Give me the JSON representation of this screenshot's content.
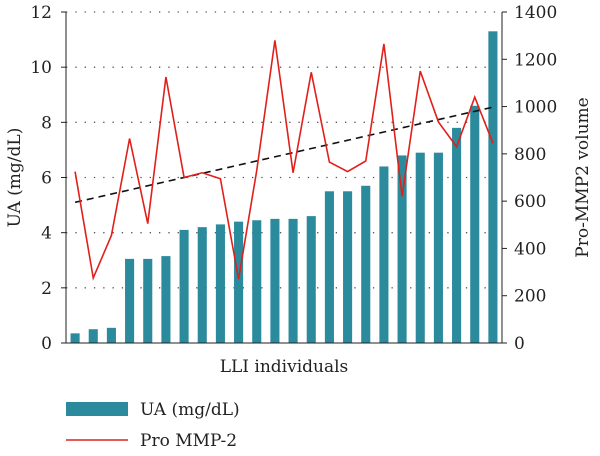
{
  "chart_data": {
    "type": "bar",
    "xlabel": "LLI individuals",
    "ylabel_left": "UA (mg/dL)",
    "ylabel_right": "Pro-MMP2 volume",
    "ylim_left": [
      0,
      12
    ],
    "ylim_right": [
      0,
      1400
    ],
    "yticks_left": [
      "0",
      "2",
      "4",
      "6",
      "8",
      "10",
      "12"
    ],
    "yticks_right": [
      "0",
      "200",
      "400",
      "600",
      "800",
      "1000",
      "1200",
      "1400"
    ],
    "grid": "horizontal dotted",
    "legend_position": "bottom-left",
    "series": [
      {
        "name": "UA (mg/dL)",
        "type": "bar",
        "axis": "left",
        "color": "#2b8a9c",
        "values": [
          0.35,
          0.5,
          0.55,
          3.05,
          3.05,
          3.15,
          4.1,
          4.2,
          4.3,
          4.4,
          4.45,
          4.5,
          4.5,
          4.6,
          5.5,
          5.5,
          5.7,
          6.4,
          6.8,
          6.9,
          6.9,
          7.8,
          8.6,
          11.3
        ]
      },
      {
        "name": "Pro MMP-2",
        "type": "line",
        "axis": "right",
        "color": "#e0201b",
        "values": [
          725,
          275,
          455,
          865,
          505,
          1125,
          700,
          720,
          695,
          270,
          730,
          1280,
          720,
          1145,
          765,
          725,
          770,
          1265,
          620,
          1150,
          935,
          830,
          1040,
          845
        ]
      },
      {
        "name": "",
        "type": "trend",
        "axis": "left",
        "color": "#111111",
        "start": 5.1,
        "end": 8.55
      }
    ]
  }
}
